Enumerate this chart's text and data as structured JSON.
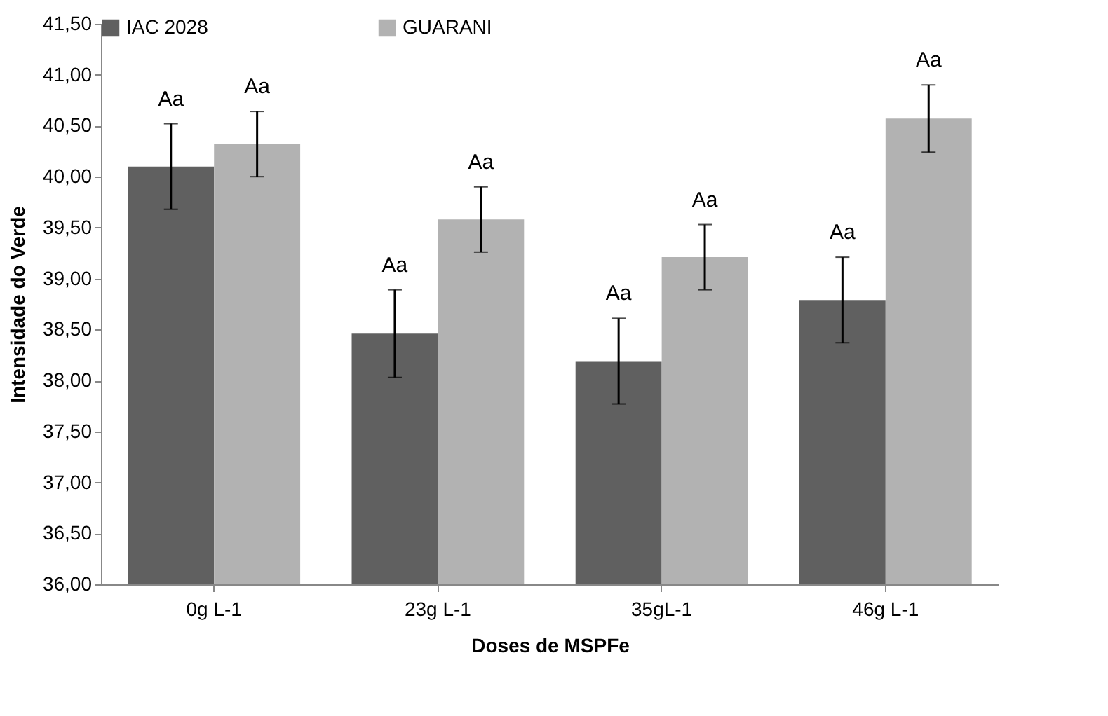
{
  "chart_data": {
    "type": "bar",
    "xlabel": "Doses de MSPFe",
    "ylabel": "Intensidade do Verde",
    "categories": [
      "0g L-1",
      "23g L-1",
      "35gL-1",
      "46g L-1"
    ],
    "series": [
      {
        "name": "IAC 2028",
        "color": "#606060",
        "values": [
          40.1,
          38.46,
          38.19,
          38.79
        ],
        "errors": [
          0.42,
          0.43,
          0.42,
          0.42
        ]
      },
      {
        "name": "GUARANI",
        "color": "#b2b2b2",
        "values": [
          40.32,
          39.58,
          39.21,
          40.57
        ],
        "errors": [
          0.32,
          0.32,
          0.32,
          0.33
        ]
      }
    ],
    "ylim": [
      36,
      41.5
    ],
    "yticks": [
      {
        "value": 36,
        "label": "36,00"
      },
      {
        "value": 36.5,
        "label": "36,50"
      },
      {
        "value": 37,
        "label": "37,00"
      },
      {
        "value": 37.5,
        "label": "37,50"
      },
      {
        "value": 38,
        "label": "38,00"
      },
      {
        "value": 38.5,
        "label": "38,50"
      },
      {
        "value": 39,
        "label": "39,00"
      },
      {
        "value": 39.5,
        "label": "39,50"
      },
      {
        "value": 40,
        "label": "40,00"
      },
      {
        "value": 40.5,
        "label": "40,50"
      },
      {
        "value": 41,
        "label": "41,00"
      },
      {
        "value": 41.5,
        "label": "41,50"
      }
    ],
    "annotations": [
      "Aa",
      "Aa",
      "Aa",
      "Aa",
      "Aa",
      "Aa",
      "Aa",
      "Aa"
    ],
    "grid": false,
    "legend": "top"
  }
}
